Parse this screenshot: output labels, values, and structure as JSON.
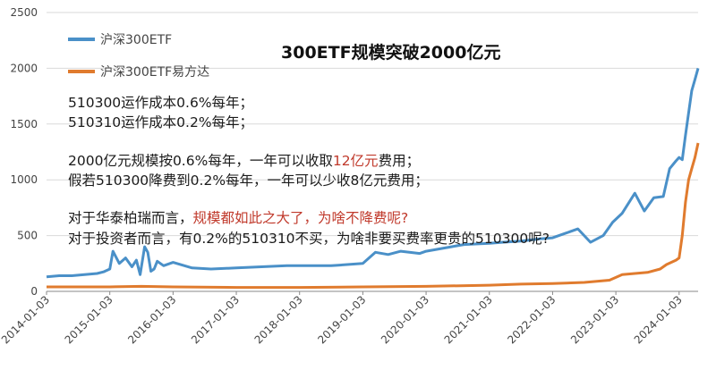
{
  "chart_data": {
    "type": "line",
    "title": "300ETF规模突破2000亿元",
    "ylim": [
      0,
      2500
    ],
    "yticks": [
      0,
      500,
      1000,
      1500,
      2000,
      2500
    ],
    "xticks": [
      "2014-01-03",
      "2015-01-03",
      "2016-01-03",
      "2017-01-03",
      "2018-01-03",
      "2019-01-03",
      "2020-01-03",
      "2021-01-03",
      "2022-01-03",
      "2023-01-03",
      "2024-01-03"
    ],
    "xlim": [
      2014.0,
      2024.3
    ],
    "grid": true,
    "legend_position": "top-left",
    "series": [
      {
        "name": "沪深300ETF",
        "color": "#4a90c8",
        "x": [
          2014.0,
          2014.2,
          2014.4,
          2014.6,
          2014.8,
          2014.9,
          2015.0,
          2015.05,
          2015.15,
          2015.25,
          2015.35,
          2015.42,
          2015.48,
          2015.55,
          2015.6,
          2015.65,
          2015.7,
          2015.75,
          2015.85,
          2016.0,
          2016.3,
          2016.6,
          2017.0,
          2017.4,
          2017.8,
          2018.0,
          2018.5,
          2019.0,
          2019.2,
          2019.4,
          2019.6,
          2019.9,
          2020.0,
          2020.2,
          2020.4,
          2020.6,
          2021.0,
          2021.2,
          2021.5,
          2021.8,
          2022.0,
          2022.2,
          2022.4,
          2022.6,
          2022.8,
          2022.95,
          2023.1,
          2023.3,
          2023.45,
          2023.6,
          2023.75,
          2023.85,
          2023.95,
          2024.0,
          2024.05,
          2024.1,
          2024.15,
          2024.2,
          2024.25,
          2024.3
        ],
        "values": [
          130,
          140,
          140,
          150,
          160,
          175,
          200,
          360,
          250,
          300,
          220,
          280,
          150,
          400,
          350,
          180,
          200,
          270,
          230,
          260,
          210,
          200,
          210,
          220,
          230,
          230,
          230,
          250,
          350,
          330,
          360,
          340,
          360,
          380,
          400,
          420,
          430,
          440,
          450,
          470,
          480,
          520,
          560,
          440,
          500,
          620,
          700,
          880,
          720,
          840,
          850,
          1100,
          1170,
          1200,
          1180,
          1400,
          1600,
          1800,
          1900,
          2000
        ]
      },
      {
        "name": "沪深300ETF易方达",
        "color": "#e07b2e",
        "x": [
          2014.0,
          2014.5,
          2015.0,
          2015.5,
          2016.0,
          2017.0,
          2018.0,
          2019.0,
          2020.0,
          2021.0,
          2021.5,
          2022.0,
          2022.5,
          2022.9,
          2023.1,
          2023.3,
          2023.5,
          2023.7,
          2023.8,
          2023.95,
          2024.0,
          2024.05,
          2024.1,
          2024.15,
          2024.2,
          2024.25,
          2024.3
        ],
        "values": [
          40,
          40,
          40,
          45,
          40,
          35,
          35,
          40,
          45,
          55,
          65,
          70,
          80,
          100,
          150,
          160,
          170,
          200,
          240,
          280,
          300,
          500,
          800,
          1000,
          1100,
          1200,
          1330
        ]
      }
    ]
  },
  "notes": {
    "line1": "510300运作成本0.6%每年；",
    "line2": "510310运作成本0.2%每年；",
    "line3_a": "2000亿元规模按0.6%每年，一年可以收取",
    "line3_b": "12亿元",
    "line3_c": "费用；",
    "line4": "假若510300降费到0.2%每年，一年可以少收8亿元费用；",
    "line5_a": "对于华泰柏瑞而言，",
    "line5_b": "规模都如此之大了，为啥不降费呢?",
    "line6": "对于投资者而言，有0.2%的510310不买，为啥非要买费率更贵的510300呢?"
  }
}
